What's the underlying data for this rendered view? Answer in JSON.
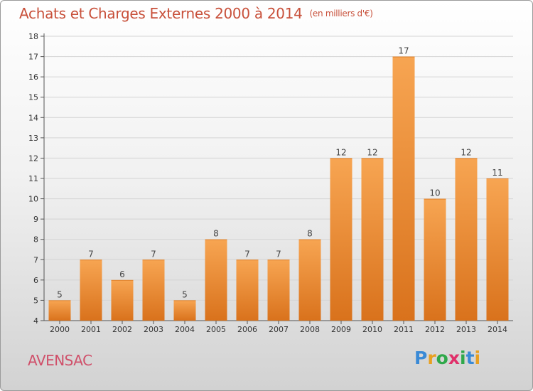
{
  "header": {
    "title": "Achats et Charges Externes 2000 à 2014",
    "unit": "(en milliers d'€)"
  },
  "footer": {
    "commune": "AVENSAC",
    "brand": "Proxiti"
  },
  "colors": {
    "bar_top": "#f7a552",
    "bar_bottom": "#d9721c",
    "title": "#c8503a",
    "commune": "#d0506a"
  },
  "chart_data": {
    "type": "bar",
    "title": "Achats et Charges Externes 2000 à 2014",
    "subtitle": "(en milliers d'€)",
    "categories": [
      "2000",
      "2001",
      "2002",
      "2003",
      "2004",
      "2005",
      "2006",
      "2007",
      "2008",
      "2009",
      "2010",
      "2011",
      "2012",
      "2013",
      "2014"
    ],
    "values": [
      5,
      7,
      6,
      7,
      5,
      8,
      7,
      7,
      8,
      12,
      12,
      17,
      10,
      12,
      11
    ],
    "ylim": [
      4,
      18
    ],
    "yticks": [
      4,
      5,
      6,
      7,
      8,
      9,
      10,
      11,
      12,
      13,
      14,
      15,
      16,
      17,
      18
    ],
    "grid": true,
    "xlabel": "",
    "ylabel": ""
  }
}
